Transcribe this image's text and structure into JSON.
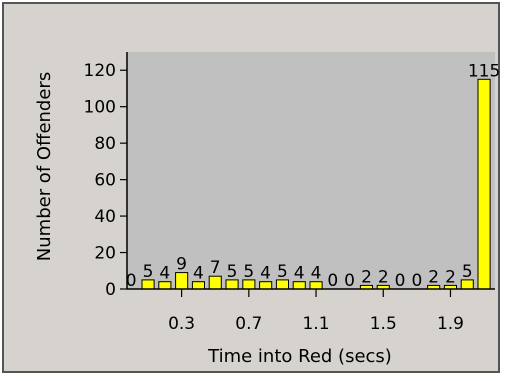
{
  "chart_data": {
    "type": "bar",
    "title": "",
    "xlabel": "Time into Red (secs)",
    "ylabel": "Number of Offenders",
    "ylim": [
      0,
      130
    ],
    "yticks": [
      0,
      20,
      40,
      60,
      80,
      100,
      120
    ],
    "xtick_labels": [
      "0.3",
      "0.7",
      "1.1",
      "1.5",
      "1.9"
    ],
    "xtick_positions": [
      0.3,
      0.7,
      1.1,
      1.5,
      1.9
    ],
    "bin_width": 0.1,
    "x": [
      0.0,
      0.1,
      0.2,
      0.3,
      0.4,
      0.5,
      0.6,
      0.7,
      0.8,
      0.9,
      1.0,
      1.1,
      1.2,
      1.3,
      1.4,
      1.5,
      1.6,
      1.7,
      1.8,
      1.9,
      2.0,
      2.1
    ],
    "values": [
      0,
      5,
      4,
      9,
      4,
      7,
      5,
      5,
      4,
      5,
      4,
      4,
      0,
      0,
      2,
      2,
      0,
      0,
      2,
      2,
      5,
      115
    ],
    "labels": [
      "0",
      "5",
      "4",
      "9",
      "4",
      "7",
      "5",
      "5",
      "4",
      "5",
      "4",
      "4",
      "0",
      "0",
      "2",
      "2",
      "0",
      "0",
      "2",
      "2",
      "5",
      "115"
    ],
    "bar_color": "#ffff00",
    "plot_background": "#c0c0c0",
    "frame_background": "#d6d3ce",
    "grid": false,
    "legend": "none"
  }
}
